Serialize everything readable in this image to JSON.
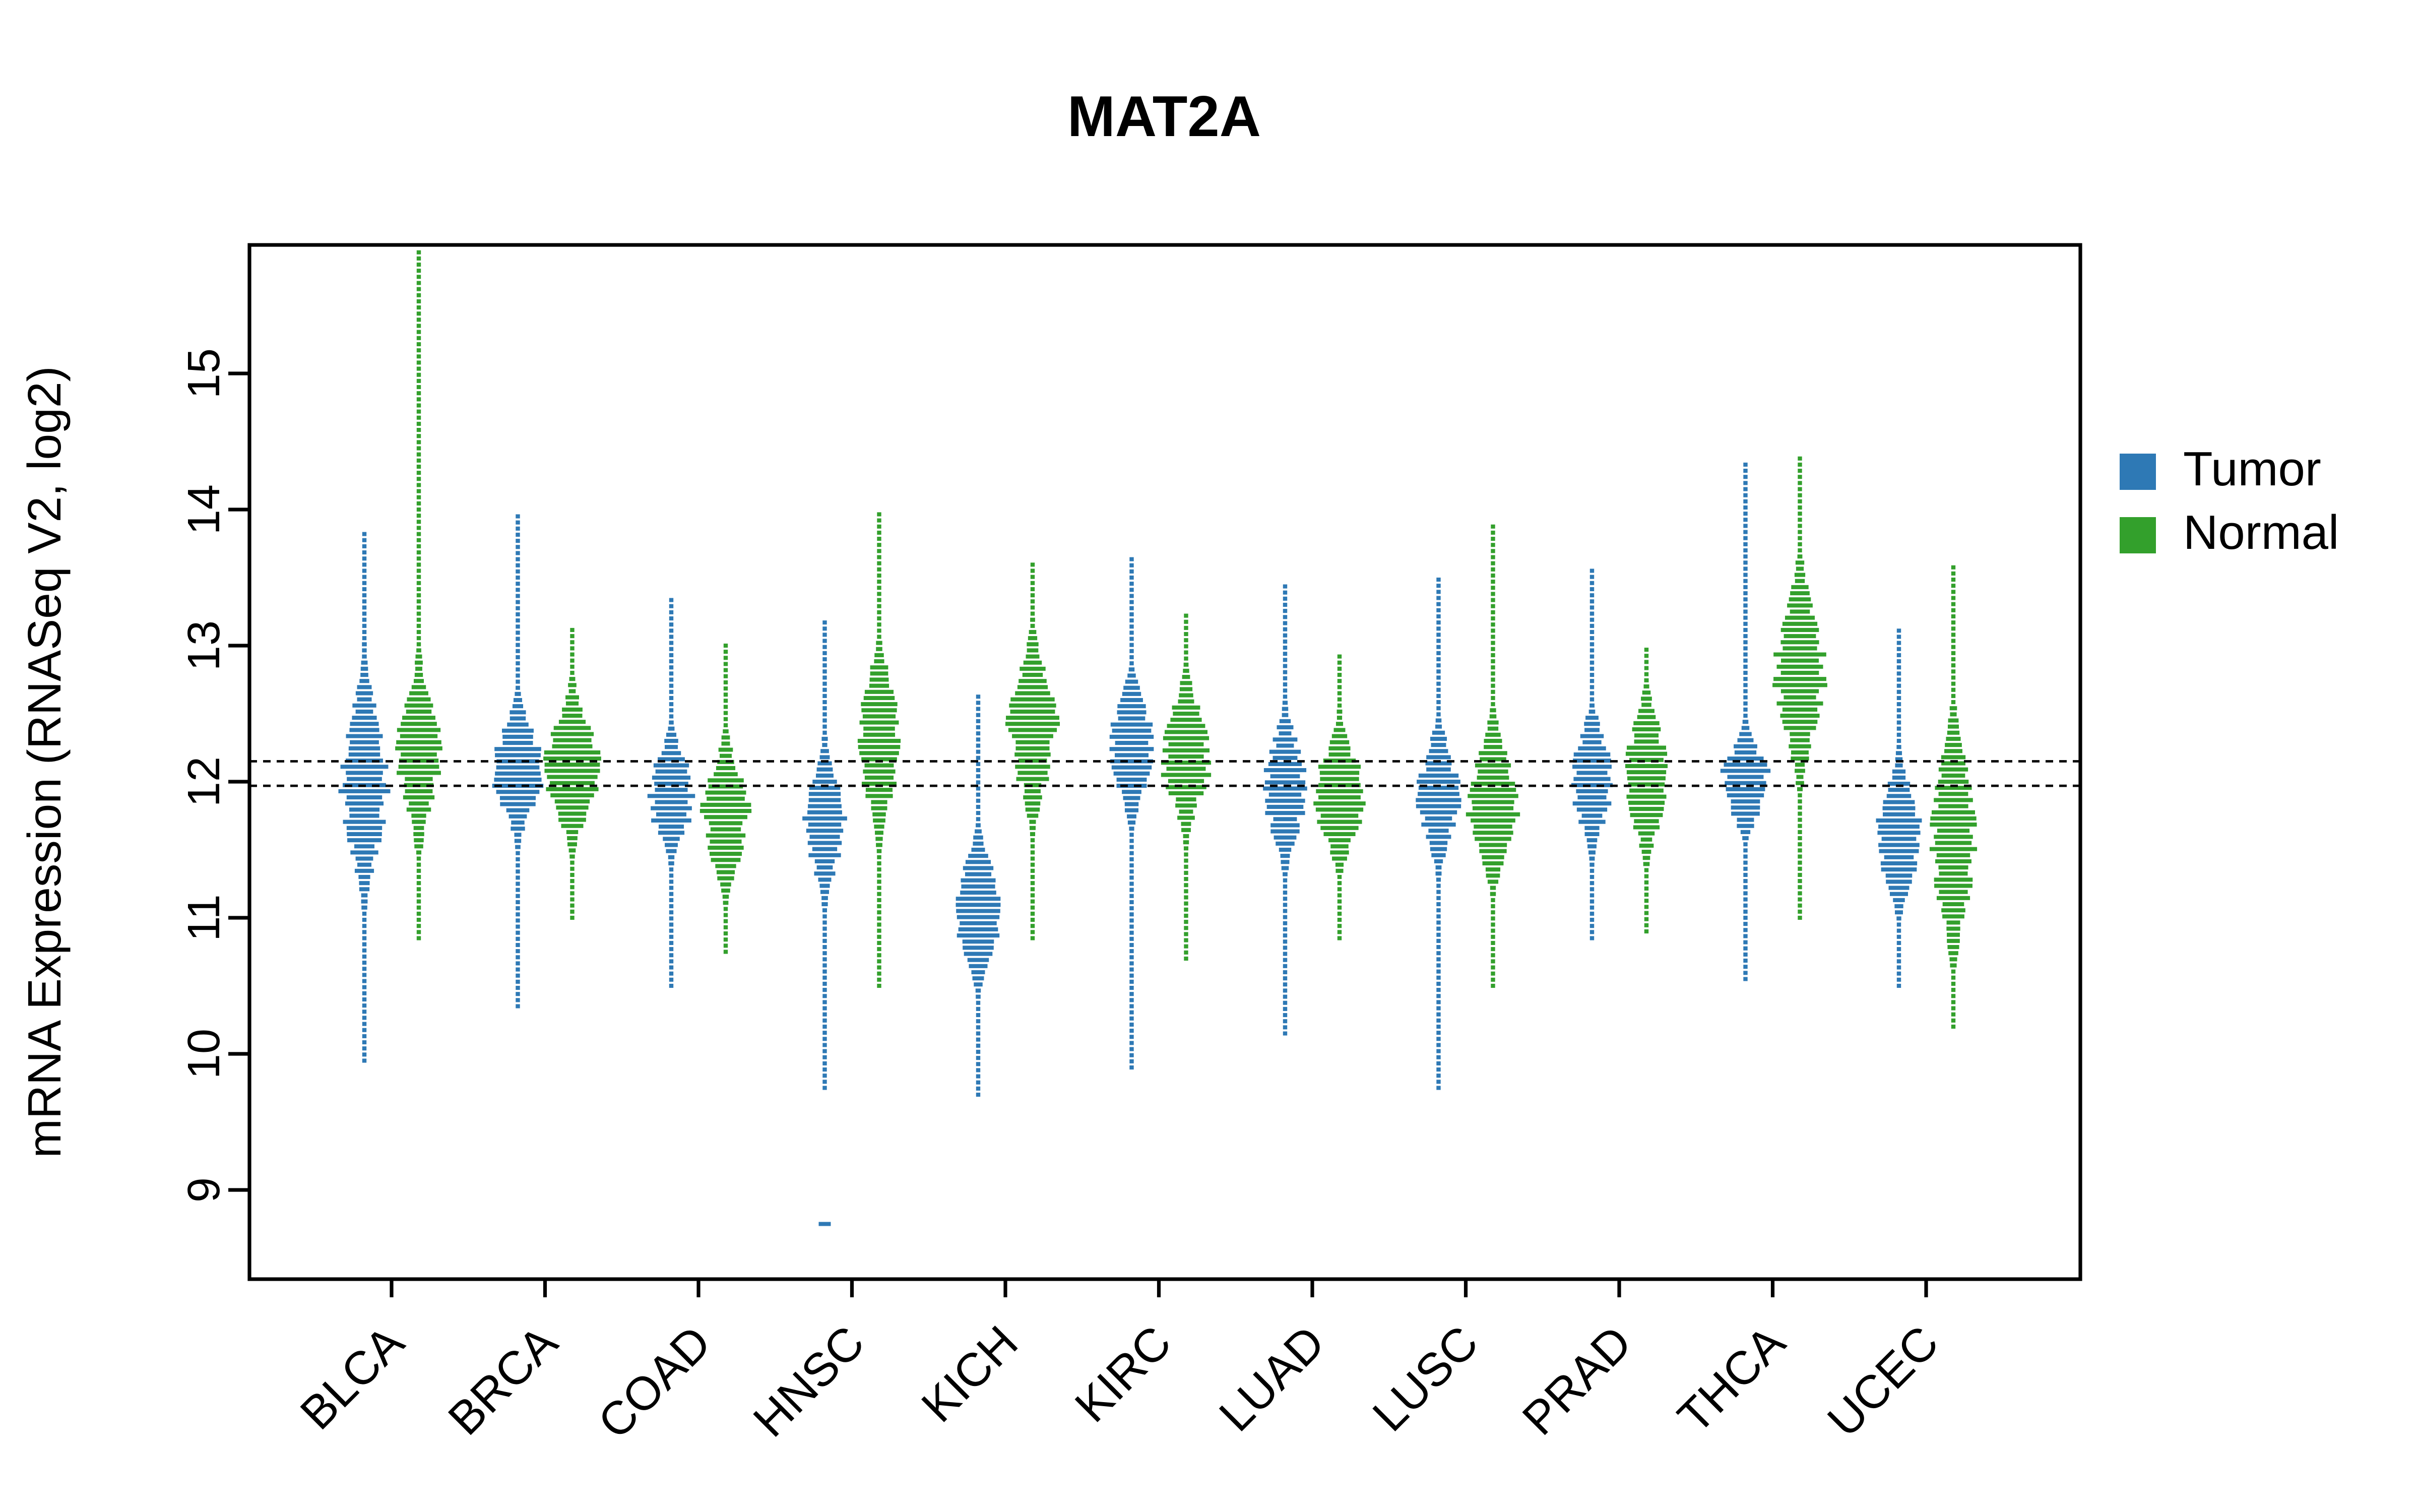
{
  "title": "MAT2A",
  "y_axis": {
    "label": "mRNA Expression (RNASeq V2, log2)",
    "ticks": [
      9,
      10,
      11,
      12,
      13,
      14,
      15
    ],
    "range": [
      8.55,
      16.05
    ]
  },
  "reference_lines": {
    "values": [
      12.15,
      11.97
    ],
    "style": "dashed"
  },
  "chart_data": {
    "type": "violin",
    "title": "MAT2A",
    "xlabel": "",
    "ylabel": "mRNA Expression (RNASeq V2, log2)",
    "ylim": [
      8.55,
      16.05
    ],
    "legend_position": "right",
    "categories": [
      "BLCA",
      "BRCA",
      "COAD",
      "HNSC",
      "KICH",
      "KIRC",
      "LUAD",
      "LUSC",
      "PRAD",
      "THCA",
      "UCEC"
    ],
    "series": [
      {
        "name": "Tumor",
        "color": "#2E79B5",
        "groups": [
          {
            "category": "BLCA",
            "center": 12.0,
            "body": [
              11.35,
              12.55
            ],
            "min": 9.95,
            "max": 13.85,
            "maxw": 14
          },
          {
            "category": "BRCA",
            "center": 12.1,
            "body": [
              11.75,
              12.45
            ],
            "min": 10.35,
            "max": 13.95,
            "maxw": 16
          },
          {
            "category": "COAD",
            "center": 11.9,
            "body": [
              11.55,
              12.2
            ],
            "min": 10.5,
            "max": 13.35,
            "maxw": 14
          },
          {
            "category": "HNSC",
            "center": 11.7,
            "body": [
              11.3,
              12.1
            ],
            "min": 9.75,
            "max": 13.2,
            "maxw": 12,
            "outliers": [
              8.75
            ]
          },
          {
            "category": "KICH",
            "center": 11.05,
            "body": [
              10.7,
              11.45
            ],
            "min": 9.7,
            "max": 12.65,
            "maxw": 16
          },
          {
            "category": "KIRC",
            "center": 12.25,
            "body": [
              11.9,
              12.65
            ],
            "min": 9.9,
            "max": 13.65,
            "maxw": 14
          },
          {
            "category": "LUAD",
            "center": 11.95,
            "body": [
              11.55,
              12.35
            ],
            "min": 10.15,
            "max": 13.45,
            "maxw": 13
          },
          {
            "category": "LUSC",
            "center": 11.9,
            "body": [
              11.5,
              12.25
            ],
            "min": 9.75,
            "max": 13.5,
            "maxw": 13
          },
          {
            "category": "PRAD",
            "center": 12.0,
            "body": [
              11.65,
              12.4
            ],
            "min": 10.85,
            "max": 13.55,
            "maxw": 13
          },
          {
            "category": "THCA",
            "center": 12.0,
            "body": [
              11.75,
              12.3
            ],
            "min": 10.55,
            "max": 14.35,
            "maxw": 15
          },
          {
            "category": "UCEC",
            "center": 11.6,
            "body": [
              11.2,
              12.0
            ],
            "min": 10.5,
            "max": 13.15,
            "maxw": 13
          }
        ]
      },
      {
        "name": "Normal",
        "color": "#33A02C",
        "groups": [
          {
            "category": "BLCA",
            "center": 12.2,
            "body": [
              11.75,
              12.7
            ],
            "min": 10.85,
            "max": 15.9,
            "maxw": 13
          },
          {
            "category": "BRCA",
            "center": 12.1,
            "body": [
              11.7,
              12.5
            ],
            "min": 11.0,
            "max": 13.15,
            "maxw": 16
          },
          {
            "category": "COAD",
            "center": 11.75,
            "body": [
              11.35,
              12.15
            ],
            "min": 10.75,
            "max": 13.0,
            "maxw": 14
          },
          {
            "category": "HNSC",
            "center": 12.3,
            "body": [
              11.85,
              12.85
            ],
            "min": 10.5,
            "max": 14.0,
            "maxw": 13
          },
          {
            "category": "KICH",
            "center": 12.4,
            "body": [
              11.9,
              12.85
            ],
            "min": 10.85,
            "max": 13.6,
            "maxw": 15
          },
          {
            "category": "KIRC",
            "center": 12.2,
            "body": [
              11.8,
              12.6
            ],
            "min": 10.7,
            "max": 13.25,
            "maxw": 15
          },
          {
            "category": "LUAD",
            "center": 11.9,
            "body": [
              11.5,
              12.25
            ],
            "min": 10.85,
            "max": 12.95,
            "maxw": 15
          },
          {
            "category": "LUSC",
            "center": 11.85,
            "body": [
              11.45,
              12.3
            ],
            "min": 10.5,
            "max": 13.9,
            "maxw": 15
          },
          {
            "category": "PRAD",
            "center": 12.05,
            "body": [
              11.6,
              12.45
            ],
            "min": 10.9,
            "max": 13.0,
            "maxw": 14
          },
          {
            "category": "THCA",
            "center": 12.8,
            "body": [
              12.3,
              13.4
            ],
            "min": 11.0,
            "max": 14.4,
            "maxw": 15
          },
          {
            "category": "UCEC",
            "center": 11.6,
            "body": [
              11.05,
              12.3
            ],
            "min": 10.2,
            "max": 13.6,
            "maxw": 14
          }
        ]
      }
    ]
  }
}
